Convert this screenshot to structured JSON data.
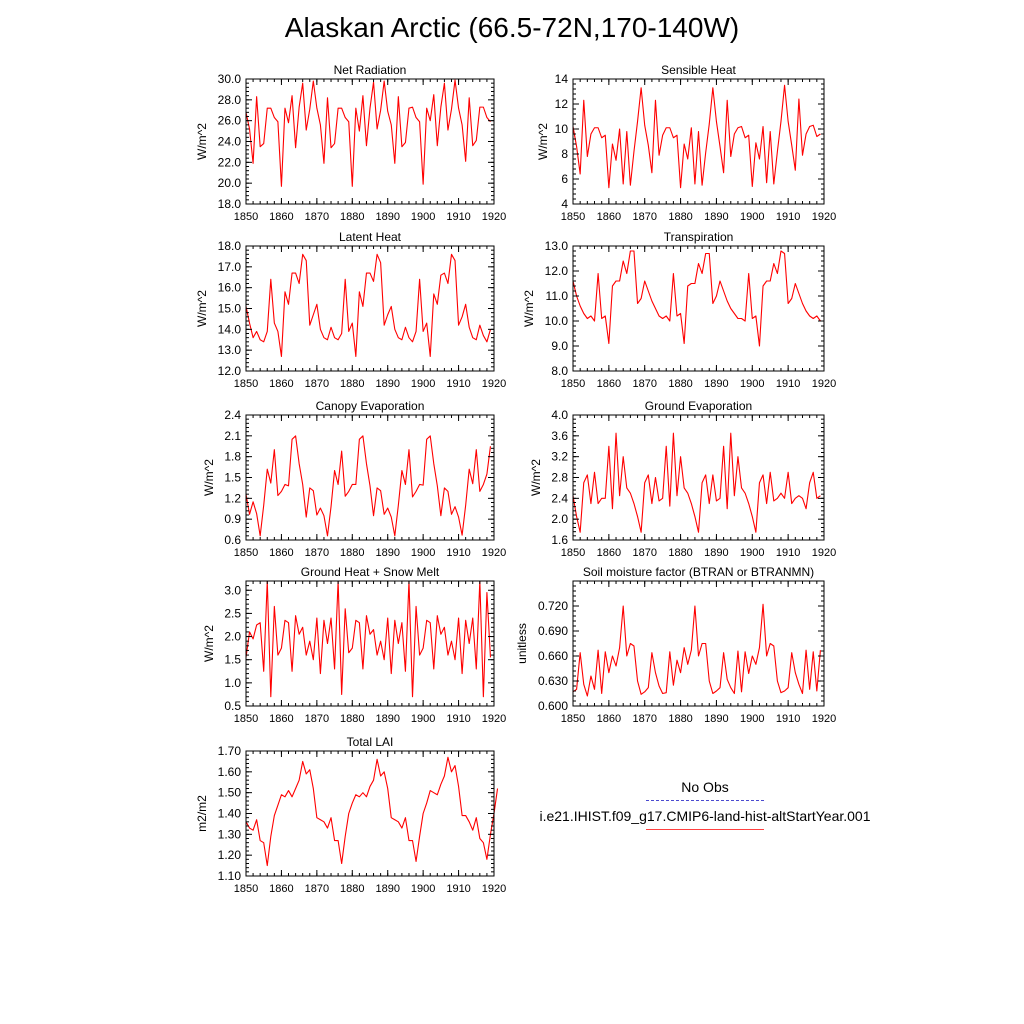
{
  "title": "Alaskan Arctic (66.5-72N,170-140W)",
  "legend": {
    "obs_label": "No Obs",
    "model_label": "i.e21.IHIST.f09_g17.CMIP6-land-hist-altStartYear.001",
    "model_color": "#ff0000",
    "obs_color": "#4040c0"
  },
  "chart_data": [
    {
      "type": "line",
      "title": "Net Radiation",
      "ylabel": "W/m^2",
      "xlim": [
        1850,
        1920
      ],
      "ylim": [
        18,
        30
      ],
      "xticks": [
        1850,
        1860,
        1870,
        1880,
        1890,
        1900,
        1910,
        1920
      ],
      "xtick_labels": [
        "1850",
        "1860",
        "1870",
        "1880",
        "1890",
        "1900",
        "1910",
        "1920"
      ],
      "yticks": [
        18,
        20,
        22,
        24,
        26,
        28,
        30
      ],
      "ytick_labels": [
        "18.0",
        "20.0",
        "22.0",
        "24.0",
        "26.0",
        "28.0",
        "30.0"
      ],
      "series": [
        {
          "color": "#ff0000",
          "x0": 1850,
          "values": [
            26.8,
            25.2,
            21.9,
            28.3,
            23.5,
            23.8,
            27.2,
            27.2,
            26.3,
            25.9,
            19.7,
            27.2,
            25.8,
            28.4,
            23.4,
            27.3,
            29.6,
            25.1,
            27.1,
            29.8,
            27.2,
            25.6,
            21.9,
            28.2,
            23.4,
            23.8,
            27.2,
            27.2,
            26.3,
            25.9,
            19.7,
            27.2,
            25.0,
            28.4,
            23.6,
            27.2,
            29.7,
            25.2,
            27.0,
            29.8,
            26.9,
            25.6,
            21.9,
            28.3,
            23.5,
            23.9,
            27.2,
            27.3,
            26.3,
            25.9,
            19.9,
            27.2,
            26.0,
            28.5,
            23.6,
            27.3,
            29.6,
            25.1,
            27.1,
            29.9,
            27.2,
            25.6,
            22.1,
            28.2,
            23.6,
            24.1,
            27.3,
            27.3,
            26.3,
            25.9
          ]
        }
      ]
    },
    {
      "type": "line",
      "title": "Sensible Heat",
      "ylabel": "W/m^2",
      "xlim": [
        1850,
        1920
      ],
      "ylim": [
        4,
        14
      ],
      "xticks": [
        1850,
        1860,
        1870,
        1880,
        1890,
        1900,
        1910,
        1920
      ],
      "xtick_labels": [
        "1850",
        "1860",
        "1870",
        "1880",
        "1890",
        "1900",
        "1910",
        "1920"
      ],
      "yticks": [
        4,
        6,
        8,
        10,
        12,
        14
      ],
      "ytick_labels": [
        "4",
        "6",
        "8",
        "10",
        "12",
        "14"
      ],
      "series": [
        {
          "color": "#ff0000",
          "x0": 1850,
          "values": [
            10.2,
            8.6,
            6.4,
            12.3,
            7.8,
            9.6,
            10.1,
            10.1,
            9.3,
            9.5,
            5.3,
            8.8,
            7.5,
            10.0,
            5.6,
            9.8,
            5.5,
            8.2,
            10.6,
            13.3,
            10.3,
            8.7,
            6.5,
            12.3,
            7.9,
            9.5,
            10.1,
            10.1,
            9.3,
            9.5,
            5.3,
            8.8,
            7.6,
            10.1,
            5.6,
            9.8,
            5.5,
            8.1,
            10.4,
            13.3,
            10.6,
            8.6,
            6.5,
            12.3,
            7.8,
            9.6,
            10.1,
            10.2,
            9.3,
            9.5,
            5.4,
            8.9,
            7.6,
            10.2,
            5.7,
            9.8,
            5.6,
            8.2,
            10.6,
            13.5,
            10.6,
            8.7,
            6.7,
            12.4,
            7.9,
            9.6,
            10.2,
            10.3,
            9.4,
            9.6
          ]
        }
      ]
    },
    {
      "type": "line",
      "title": "Latent Heat",
      "ylabel": "W/m^2",
      "xlim": [
        1850,
        1920
      ],
      "ylim": [
        12,
        18
      ],
      "xticks": [
        1850,
        1860,
        1870,
        1880,
        1890,
        1900,
        1910,
        1920
      ],
      "xtick_labels": [
        "1850",
        "1860",
        "1870",
        "1880",
        "1890",
        "1900",
        "1910",
        "1920"
      ],
      "yticks": [
        12,
        13,
        14,
        15,
        16,
        17,
        18
      ],
      "ytick_labels": [
        "12.0",
        "13.0",
        "14.0",
        "15.0",
        "16.0",
        "17.0",
        "18.0"
      ],
      "series": [
        {
          "color": "#ff0000",
          "x0": 1850,
          "values": [
            15.1,
            14.3,
            13.6,
            13.9,
            13.5,
            13.4,
            13.9,
            16.4,
            14.3,
            13.9,
            12.7,
            15.8,
            15.2,
            16.7,
            16.7,
            16.2,
            17.6,
            17.3,
            14.2,
            14.7,
            15.2,
            14.0,
            13.6,
            13.5,
            14.1,
            13.6,
            13.5,
            13.8,
            16.4,
            13.9,
            14.3,
            12.7,
            15.8,
            15.1,
            16.7,
            16.7,
            16.3,
            17.6,
            17.2,
            14.2,
            14.7,
            15.1,
            14.0,
            13.6,
            13.5,
            14.1,
            13.6,
            13.4,
            13.9,
            16.4,
            13.9,
            14.3,
            12.7,
            15.7,
            15.2,
            16.6,
            16.7,
            16.2,
            17.6,
            17.3,
            14.2,
            14.6,
            15.2,
            14.1,
            13.6,
            13.5,
            14.2,
            13.7,
            13.4,
            14.0
          ]
        }
      ]
    },
    {
      "type": "line",
      "title": "Transpiration",
      "ylabel": "W/m^2",
      "xlim": [
        1850,
        1920
      ],
      "ylim": [
        8,
        13
      ],
      "xticks": [
        1850,
        1860,
        1870,
        1880,
        1890,
        1900,
        1910,
        1920
      ],
      "xtick_labels": [
        "1850",
        "1860",
        "1870",
        "1880",
        "1890",
        "1900",
        "1910",
        "1920"
      ],
      "yticks": [
        8,
        9,
        10,
        11,
        12,
        13
      ],
      "ytick_labels": [
        "8.0",
        "9.0",
        "10.0",
        "11.0",
        "12.0",
        "13.0"
      ],
      "series": [
        {
          "color": "#ff0000",
          "x0": 1850,
          "values": [
            11.6,
            11.0,
            10.6,
            10.3,
            10.1,
            10.2,
            10.0,
            11.9,
            10.1,
            10.2,
            9.1,
            11.4,
            11.6,
            11.6,
            12.4,
            11.9,
            12.8,
            12.8,
            10.7,
            10.9,
            11.6,
            11.2,
            10.8,
            10.5,
            10.2,
            10.1,
            10.2,
            10.0,
            11.9,
            10.2,
            10.3,
            9.1,
            11.4,
            11.5,
            11.5,
            12.3,
            11.9,
            12.7,
            12.7,
            10.7,
            11.0,
            11.6,
            11.2,
            10.8,
            10.5,
            10.3,
            10.1,
            10.1,
            10.0,
            11.9,
            10.1,
            10.2,
            9.0,
            11.4,
            11.6,
            11.6,
            12.3,
            11.9,
            12.8,
            12.7,
            10.7,
            10.9,
            11.5,
            11.1,
            10.7,
            10.4,
            10.2,
            10.1,
            10.2,
            10.0
          ]
        }
      ]
    },
    {
      "type": "line",
      "title": "Canopy Evaporation",
      "ylabel": "W/m^2",
      "xlim": [
        1850,
        1920
      ],
      "ylim": [
        0.6,
        2.4
      ],
      "xticks": [
        1850,
        1860,
        1870,
        1880,
        1890,
        1900,
        1910,
        1920
      ],
      "xtick_labels": [
        "1850",
        "1860",
        "1870",
        "1880",
        "1890",
        "1900",
        "1910",
        "1920"
      ],
      "yticks": [
        0.6,
        0.9,
        1.2,
        1.5,
        1.8,
        2.1,
        2.4
      ],
      "ytick_labels": [
        "0.6",
        "0.9",
        "1.2",
        "1.5",
        "1.8",
        "2.1",
        "2.4"
      ],
      "series": [
        {
          "color": "#ff0000",
          "x0": 1850,
          "values": [
            1.26,
            0.97,
            1.15,
            0.98,
            0.66,
            1.1,
            1.62,
            1.42,
            1.9,
            1.24,
            1.3,
            1.4,
            1.38,
            2.05,
            2.1,
            1.7,
            1.4,
            0.93,
            1.35,
            1.31,
            0.96,
            1.06,
            0.95,
            0.66,
            1.08,
            1.6,
            1.4,
            1.88,
            1.23,
            1.3,
            1.4,
            1.4,
            2.05,
            2.1,
            1.7,
            1.38,
            0.95,
            1.35,
            1.31,
            0.97,
            1.06,
            0.93,
            0.66,
            1.1,
            1.6,
            1.4,
            1.9,
            1.22,
            1.3,
            1.4,
            1.39,
            2.05,
            2.1,
            1.7,
            1.38,
            0.95,
            1.35,
            1.3,
            0.97,
            1.08,
            0.93,
            0.67,
            1.1,
            1.62,
            1.41,
            1.9,
            1.3,
            1.4,
            1.55,
            1.95
          ]
        }
      ]
    },
    {
      "type": "line",
      "title": "Ground Evaporation",
      "ylabel": "W/m^2",
      "xlim": [
        1850,
        1920
      ],
      "ylim": [
        1.6,
        4.0
      ],
      "xticks": [
        1850,
        1860,
        1870,
        1880,
        1890,
        1900,
        1910,
        1920
      ],
      "xtick_labels": [
        "1850",
        "1860",
        "1870",
        "1880",
        "1890",
        "1900",
        "1910",
        "1920"
      ],
      "yticks": [
        1.6,
        2.0,
        2.4,
        2.8,
        3.2,
        3.6,
        4.0
      ],
      "ytick_labels": [
        "1.6",
        "2.0",
        "2.4",
        "2.8",
        "3.2",
        "3.6",
        "4.0"
      ],
      "series": [
        {
          "color": "#ff0000",
          "x0": 1850,
          "values": [
            2.45,
            2.05,
            1.75,
            2.7,
            2.85,
            2.3,
            2.9,
            2.3,
            2.4,
            2.4,
            3.4,
            2.2,
            3.65,
            2.45,
            3.2,
            2.6,
            2.5,
            2.3,
            2.05,
            1.75,
            2.7,
            2.85,
            2.3,
            2.8,
            2.35,
            2.4,
            3.4,
            2.25,
            3.65,
            2.45,
            3.2,
            2.6,
            2.5,
            2.3,
            2.05,
            1.75,
            2.7,
            2.85,
            2.3,
            2.85,
            2.35,
            2.4,
            3.4,
            2.2,
            3.65,
            2.45,
            3.2,
            2.6,
            2.5,
            2.3,
            2.05,
            1.75,
            2.7,
            2.85,
            2.3,
            2.9,
            2.35,
            2.4,
            2.5,
            2.4,
            2.9,
            2.3,
            2.4,
            2.45,
            2.4,
            2.2,
            2.7,
            2.9,
            2.4,
            2.45
          ]
        }
      ]
    },
    {
      "type": "line",
      "title": "Ground Heat + Snow Melt",
      "ylabel": "W/m^2",
      "xlim": [
        1850,
        1920
      ],
      "ylim": [
        0.5,
        3.2
      ],
      "xticks": [
        1850,
        1860,
        1870,
        1880,
        1890,
        1900,
        1910,
        1920
      ],
      "xtick_labels": [
        "1850",
        "1860",
        "1870",
        "1880",
        "1890",
        "1900",
        "1910",
        "1920"
      ],
      "yticks": [
        0.5,
        1.0,
        1.5,
        2.0,
        2.5,
        3.0
      ],
      "ytick_labels": [
        "0.5",
        "1.0",
        "1.5",
        "2.0",
        "2.5",
        "3.0"
      ],
      "series": [
        {
          "color": "#ff0000",
          "x0": 1850,
          "values": [
            1.55,
            2.1,
            1.95,
            2.25,
            2.3,
            1.25,
            3.2,
            0.7,
            2.65,
            1.6,
            1.75,
            2.35,
            2.3,
            1.25,
            2.45,
            2.05,
            2.2,
            1.6,
            1.9,
            1.5,
            2.4,
            1.2,
            2.35,
            1.85,
            2.4,
            1.3,
            3.2,
            0.75,
            2.6,
            1.65,
            1.75,
            2.35,
            2.3,
            1.3,
            2.45,
            2.05,
            2.15,
            1.6,
            1.9,
            1.5,
            2.4,
            1.2,
            2.35,
            1.85,
            2.3,
            1.25,
            3.2,
            0.7,
            2.65,
            1.6,
            1.75,
            2.35,
            2.3,
            1.3,
            2.45,
            2.05,
            2.2,
            1.6,
            1.9,
            1.5,
            2.4,
            1.2,
            2.35,
            1.85,
            2.4,
            1.3,
            3.2,
            0.7,
            2.95,
            1.55
          ]
        }
      ]
    },
    {
      "type": "line",
      "title": "Soil moisture factor (BTRAN or BTRANMN)",
      "ylabel": "unitless",
      "xlim": [
        1850,
        1920
      ],
      "ylim": [
        0.6,
        0.75
      ],
      "xticks": [
        1850,
        1860,
        1870,
        1880,
        1890,
        1900,
        1910,
        1920
      ],
      "xtick_labels": [
        "1850",
        "1860",
        "1870",
        "1880",
        "1890",
        "1900",
        "1910",
        "1920"
      ],
      "yticks": [
        0.6,
        0.63,
        0.66,
        0.69,
        0.72
      ],
      "ytick_labels": [
        "0.600",
        "0.630",
        "0.660",
        "0.690",
        "0.720"
      ],
      "series": [
        {
          "color": "#ff0000",
          "x0": 1850,
          "values": [
            0.617,
            0.62,
            0.664,
            0.626,
            0.612,
            0.636,
            0.62,
            0.667,
            0.615,
            0.665,
            0.64,
            0.66,
            0.648,
            0.67,
            0.72,
            0.66,
            0.675,
            0.672,
            0.63,
            0.614,
            0.617,
            0.622,
            0.664,
            0.64,
            0.624,
            0.615,
            0.616,
            0.665,
            0.625,
            0.655,
            0.64,
            0.67,
            0.65,
            0.667,
            0.72,
            0.66,
            0.675,
            0.675,
            0.63,
            0.615,
            0.618,
            0.622,
            0.664,
            0.632,
            0.622,
            0.615,
            0.666,
            0.617,
            0.665,
            0.639,
            0.66,
            0.65,
            0.67,
            0.722,
            0.66,
            0.675,
            0.672,
            0.63,
            0.616,
            0.618,
            0.622,
            0.664,
            0.64,
            0.626,
            0.615,
            0.667,
            0.62,
            0.665,
            0.618,
            0.667
          ]
        }
      ]
    },
    {
      "type": "line",
      "title": "Total LAI",
      "ylabel": "m2/m2",
      "xlim": [
        1850,
        1920
      ],
      "ylim": [
        1.1,
        1.7
      ],
      "xticks": [
        1850,
        1860,
        1870,
        1880,
        1890,
        1900,
        1910,
        1920
      ],
      "xtick_labels": [
        "1850",
        "1860",
        "1870",
        "1880",
        "1890",
        "1900",
        "1910",
        "1920"
      ],
      "yticks": [
        1.1,
        1.2,
        1.3,
        1.4,
        1.5,
        1.6,
        1.7
      ],
      "ytick_labels": [
        "1.10",
        "1.20",
        "1.30",
        "1.40",
        "1.50",
        "1.60",
        "1.70"
      ],
      "series": [
        {
          "color": "#ff0000",
          "x0": 1850,
          "values": [
            1.36,
            1.33,
            1.32,
            1.37,
            1.27,
            1.26,
            1.15,
            1.29,
            1.39,
            1.44,
            1.49,
            1.48,
            1.51,
            1.48,
            1.52,
            1.56,
            1.65,
            1.59,
            1.61,
            1.52,
            1.38,
            1.37,
            1.36,
            1.33,
            1.38,
            1.27,
            1.27,
            1.16,
            1.29,
            1.4,
            1.45,
            1.49,
            1.48,
            1.5,
            1.48,
            1.53,
            1.56,
            1.66,
            1.58,
            1.6,
            1.52,
            1.38,
            1.37,
            1.36,
            1.33,
            1.38,
            1.27,
            1.27,
            1.17,
            1.29,
            1.4,
            1.45,
            1.51,
            1.5,
            1.49,
            1.54,
            1.58,
            1.67,
            1.6,
            1.63,
            1.53,
            1.39,
            1.39,
            1.36,
            1.32,
            1.38,
            1.28,
            1.26,
            1.18,
            1.3,
            1.4,
            1.52
          ]
        }
      ]
    }
  ]
}
